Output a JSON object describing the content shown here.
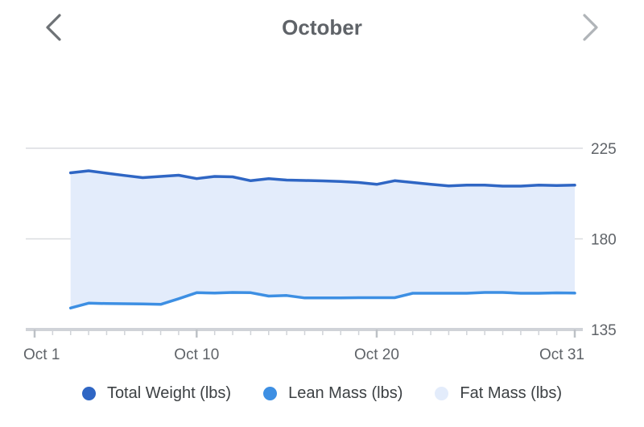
{
  "header": {
    "month": "October",
    "prev_icon": "chevron-left-icon",
    "next_icon": "chevron-right-icon"
  },
  "colors": {
    "total": "#2f66c4",
    "lean": "#3d8fe3",
    "fat": "#e3ecfb",
    "grid": "#dadce0",
    "axis": "#d0d3d8",
    "text": "#5f6368",
    "nav_prev": "#6e7276",
    "nav_next": "#b0b4b8"
  },
  "chart_data": {
    "type": "area",
    "title": "October",
    "xlabel": "",
    "ylabel": "",
    "xlim": [
      1,
      31
    ],
    "ylim": [
      135,
      225
    ],
    "y_ticks": [
      135,
      180,
      225
    ],
    "x_ticks": [
      {
        "value": 1,
        "label": "Oct 1"
      },
      {
        "value": 10,
        "label": "Oct 10"
      },
      {
        "value": 20,
        "label": "Oct 20"
      },
      {
        "value": 31,
        "label": "Oct 31"
      }
    ],
    "x_minor_ticks": [
      1,
      2,
      3,
      4,
      5,
      6,
      7,
      8,
      9,
      10,
      11,
      12,
      13,
      14,
      15,
      16,
      17,
      18,
      19,
      20,
      21,
      22,
      23,
      24,
      25,
      26,
      27,
      28,
      29,
      30,
      31
    ],
    "grid": true,
    "legend_position": "bottom",
    "x": [
      3,
      4,
      5,
      6,
      7,
      8,
      9,
      10,
      11,
      12,
      13,
      14,
      15,
      16,
      17,
      18,
      19,
      20,
      21,
      22,
      23,
      24,
      25,
      26,
      27,
      28,
      29,
      30,
      31
    ],
    "series": [
      {
        "name": "Total Weight (lbs)",
        "values": [
          212.8,
          213.8,
          212.6,
          211.5,
          210.4,
          211.0,
          211.6,
          209.9,
          211.0,
          210.8,
          208.9,
          209.9,
          209.2,
          209.0,
          208.8,
          208.5,
          208.0,
          207.1,
          208.9,
          208.0,
          207.1,
          206.3,
          206.7,
          206.7,
          206.2,
          206.2,
          206.7,
          206.5,
          206.7
        ]
      },
      {
        "name": "Lean Mass (lbs)",
        "values": [
          145.7,
          148.1,
          147.9,
          147.8,
          147.7,
          147.5,
          150.3,
          153.3,
          153.1,
          153.4,
          153.3,
          151.6,
          151.9,
          150.7,
          150.7,
          150.7,
          150.8,
          150.8,
          150.8,
          153.0,
          153.0,
          153.0,
          153.0,
          153.4,
          153.4,
          153.0,
          153.0,
          153.2,
          153.1
        ]
      },
      {
        "name": "Fat Mass (lbs)",
        "values": [
          67.1,
          65.7,
          64.7,
          63.7,
          62.7,
          63.5,
          61.3,
          56.6,
          57.9,
          57.4,
          55.6,
          58.3,
          57.3,
          58.3,
          58.1,
          57.8,
          57.2,
          56.3,
          58.1,
          55.0,
          54.1,
          53.3,
          53.7,
          53.3,
          52.8,
          53.2,
          53.7,
          53.3,
          53.6
        ]
      }
    ]
  },
  "legend": [
    {
      "label": "Total Weight (lbs)",
      "color": "#2f66c4"
    },
    {
      "label": "Lean Mass (lbs)",
      "color": "#3d8fe3"
    },
    {
      "label": "Fat Mass (lbs)",
      "color": "#e3ecfb"
    }
  ]
}
